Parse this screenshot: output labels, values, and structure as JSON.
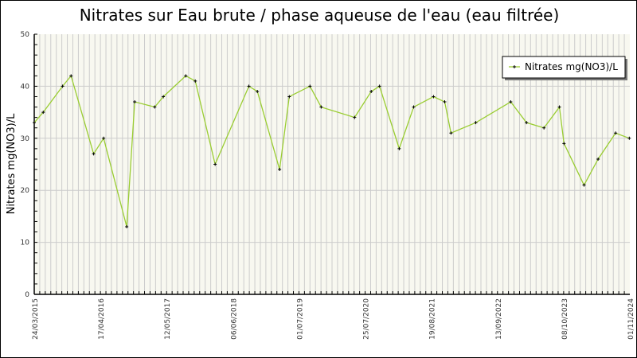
{
  "chart_data": {
    "type": "line",
    "title": "Nitrates sur Eau brute / phase aqueuse de l'eau (eau filtrée)",
    "xlabel": "",
    "ylabel": "Nitrates mg(NO3)/L",
    "ylim": [
      0,
      50
    ],
    "xlim": [
      "2015-03-24",
      "2024-11-01"
    ],
    "yticks": [
      "0",
      "10",
      "20",
      "30",
      "40",
      "50"
    ],
    "xticks": [
      "24/03/2015",
      "17/04/2016",
      "12/05/2017",
      "06/06/2018",
      "01/07/2019",
      "25/07/2020",
      "19/08/2021",
      "13/09/2022",
      "08/10/2023",
      "01/11/2024"
    ],
    "grid": true,
    "legend_position": "top-right",
    "colors": {
      "line": "#9acd32",
      "marker": "#000000",
      "plot_bg": "#f8f8f0",
      "grid": "#cccccc"
    },
    "series": [
      {
        "name": "Nitrates mg(NO3)/L",
        "x": [
          "2015-03-24",
          "2015-05-16",
          "2015-09-07",
          "2015-10-27",
          "2016-03-08",
          "2016-05-06",
          "2016-09-19",
          "2016-11-05",
          "2017-03-03",
          "2017-04-23",
          "2017-09-02",
          "2017-10-28",
          "2018-02-22",
          "2018-09-09",
          "2018-10-29",
          "2019-03-09",
          "2019-05-05",
          "2019-09-04",
          "2019-11-09",
          "2020-05-24",
          "2020-08-30",
          "2020-10-18",
          "2021-02-11",
          "2021-05-07",
          "2021-09-01",
          "2021-11-06",
          "2021-12-13",
          "2022-05-08",
          "2022-11-30",
          "2023-03-03",
          "2023-06-14",
          "2023-09-13",
          "2023-10-10",
          "2024-02-05",
          "2024-04-28",
          "2024-08-09",
          "2024-10-29"
        ],
        "values": [
          33,
          35,
          40,
          42,
          27,
          30,
          13,
          37,
          36,
          38,
          42,
          41,
          25,
          40,
          39,
          24,
          38,
          40,
          36,
          34,
          39,
          40,
          28,
          36,
          38,
          37,
          31,
          33,
          37,
          33,
          32,
          36,
          29,
          21,
          26,
          31,
          30
        ]
      }
    ]
  }
}
